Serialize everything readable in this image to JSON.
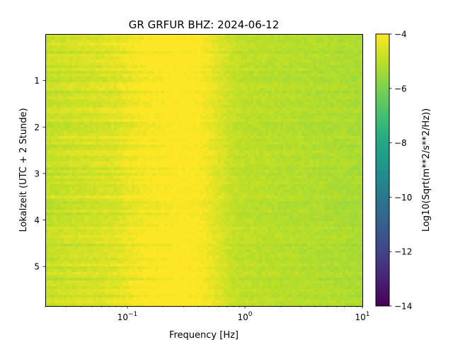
{
  "chart_data": {
    "type": "heatmap",
    "title": "GR GRFUR  BHZ: 2024-06-12",
    "xlabel": "Frequency [Hz]",
    "ylabel": "Lokalzeit (UTC + 2 Stunde)",
    "colorbar_label": "Log10(Sqrt(m**2/s**2/Hz))",
    "colormap": "viridis",
    "x_scale": "log",
    "xlim": [
      0.02,
      10
    ],
    "ylim": [
      5.85,
      0
    ],
    "y_inverted": true,
    "clim": [
      -14,
      -4
    ],
    "x_ticks": [
      {
        "value": 0.1,
        "base": "10",
        "exp": "−1"
      },
      {
        "value": 1,
        "base": "10",
        "exp": "0"
      },
      {
        "value": 10,
        "base": "10",
        "exp": "1"
      }
    ],
    "y_ticks": [
      1,
      2,
      3,
      4,
      5
    ],
    "colorbar_ticks": [
      "−4",
      "−6",
      "−8",
      "−10",
      "−12",
      "−14"
    ],
    "colorbar_tick_values": [
      -4,
      -6,
      -8,
      -10,
      -12,
      -14
    ],
    "spectrum_profile": [
      {
        "freq": 0.02,
        "value": -4.9
      },
      {
        "freq": 0.04,
        "value": -4.7
      },
      {
        "freq": 0.06,
        "value": -4.6
      },
      {
        "freq": 0.08,
        "value": -4.5
      },
      {
        "freq": 0.1,
        "value": -4.3
      },
      {
        "freq": 0.15,
        "value": -4.05
      },
      {
        "freq": 0.25,
        "value": -3.9
      },
      {
        "freq": 0.4,
        "value": -4.0
      },
      {
        "freq": 0.6,
        "value": -4.5
      },
      {
        "freq": 0.8,
        "value": -4.9
      },
      {
        "freq": 1.0,
        "value": -5.0
      },
      {
        "freq": 2.0,
        "value": -5.1
      },
      {
        "freq": 5.0,
        "value": -5.2
      },
      {
        "freq": 10.0,
        "value": -5.3
      }
    ]
  }
}
